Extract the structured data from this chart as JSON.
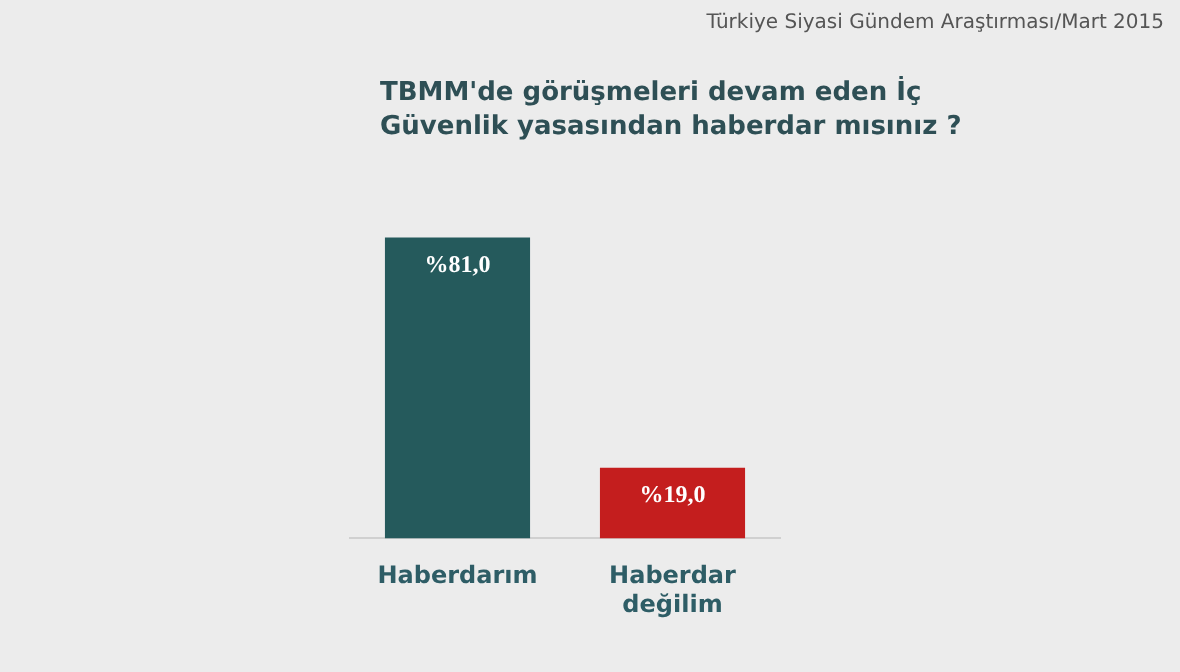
{
  "chart_data": {
    "type": "bar",
    "title": "TBMM'de görüşmeleri devam eden İç Güvenlik yasasından haberdar mısınız ?",
    "subtitle": "Türkiye Siyasi Gündem Araştırması/Mart 2015",
    "categories": [
      "Haberdarım",
      "Haberdar değilim"
    ],
    "values": [
      81,
      19
    ],
    "colors": [
      "#255a5c",
      "#c41e1e"
    ],
    "value_labels": [
      "%81,0",
      "%19,0"
    ]
  }
}
